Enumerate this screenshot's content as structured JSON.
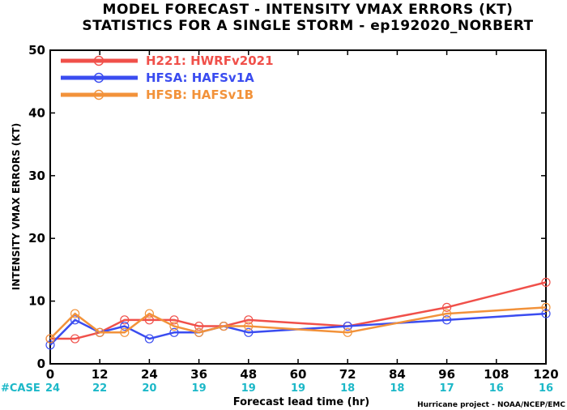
{
  "chart_data": {
    "type": "line",
    "title": "MODEL FORECAST - INTENSITY VMAX ERRORS (KT)",
    "subtitle": "STATISTICS FOR A SINGLE STORM - ep192020_NORBERT",
    "xlabel": "Forecast lead time (hr)",
    "ylabel": "INTENSITY VMAX ERRORS (KT)",
    "xlim": [
      0,
      120
    ],
    "ylim": [
      0,
      50
    ],
    "xticks": [
      0,
      12,
      24,
      36,
      48,
      60,
      72,
      84,
      96,
      108,
      120
    ],
    "yticks": [
      0,
      10,
      20,
      30,
      40,
      50
    ],
    "grid": false,
    "legend_position": "top-left",
    "series": [
      {
        "name": "H221: HWRFv2021",
        "color": "#f0504a",
        "x": [
          0,
          6,
          12,
          18,
          24,
          30,
          36,
          42,
          48,
          72,
          96,
          120
        ],
        "values": [
          4,
          4,
          5,
          7,
          7,
          7,
          6,
          6,
          7,
          6,
          9,
          13
        ]
      },
      {
        "name": "HFSA: HAFSv1A",
        "color": "#3a4cf0",
        "x": [
          0,
          6,
          12,
          18,
          24,
          30,
          36,
          42,
          48,
          72,
          96,
          120
        ],
        "values": [
          3,
          7,
          5,
          6,
          4,
          5,
          5,
          6,
          5,
          6,
          7,
          8
        ]
      },
      {
        "name": "HFSB: HAFSv1B",
        "color": "#f2923a",
        "x": [
          0,
          6,
          12,
          18,
          24,
          30,
          36,
          42,
          48,
          72,
          96,
          120
        ],
        "values": [
          4,
          8,
          5,
          5,
          8,
          6,
          5,
          6,
          6,
          5,
          8,
          9
        ]
      }
    ],
    "case_counts": {
      "label": "#CASE",
      "color": "#1cb8c8",
      "x": [
        0,
        12,
        24,
        36,
        48,
        60,
        72,
        84,
        96,
        108,
        120
      ],
      "values": [
        24,
        22,
        20,
        19,
        19,
        19,
        18,
        18,
        17,
        16,
        16
      ]
    },
    "credit": "Hurricane project - NOAA/NCEP/EMC"
  }
}
